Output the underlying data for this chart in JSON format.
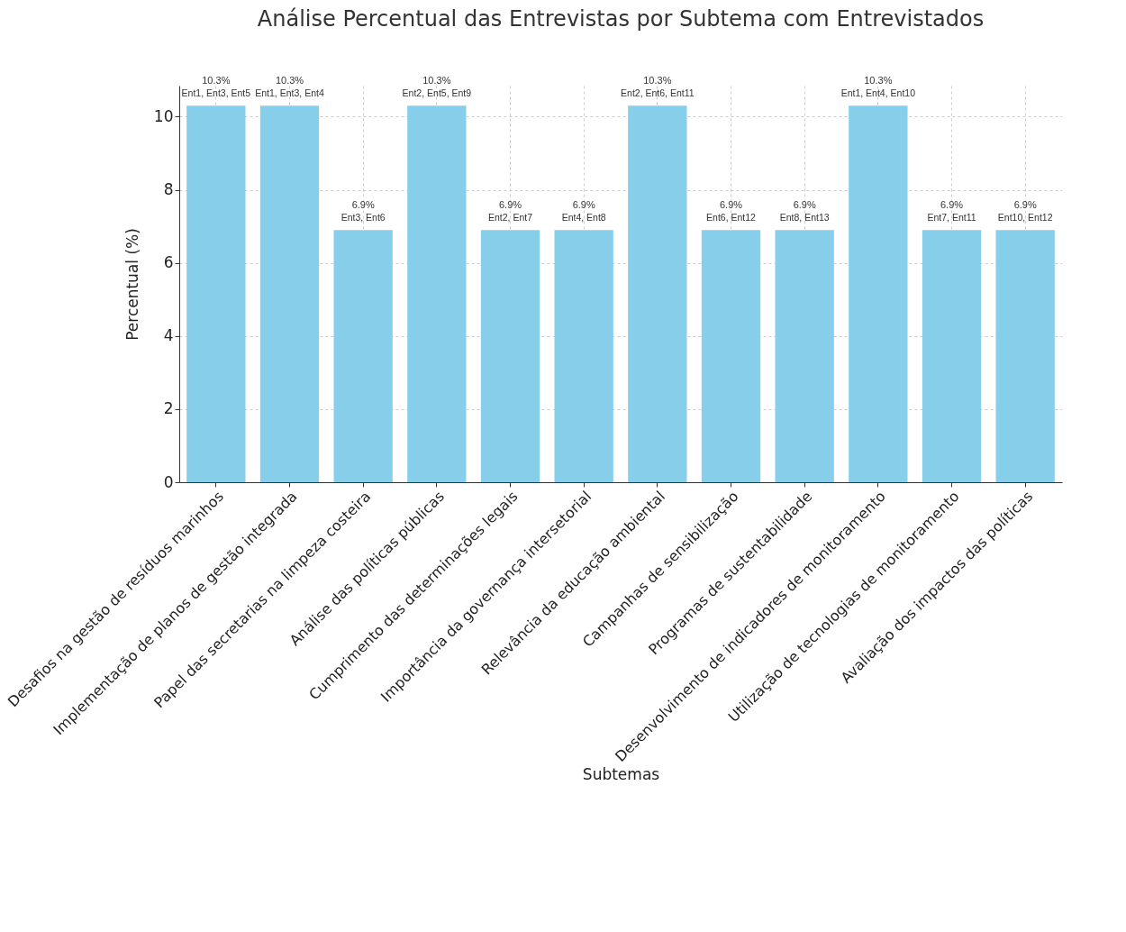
{
  "chart_data": {
    "type": "bar",
    "title": "Análise Percentual das Entrevistas por Subtema com Entrevistados",
    "xlabel": "Subtemas",
    "ylabel": "Percentual (%)",
    "categories": [
      "Desafios na gestão de resíduos marinhos",
      "Implementação de planos de gestão integrada",
      "Papel das secretarias na limpeza costeira",
      "Análise das políticas públicas",
      "Cumprimento das determinações legais",
      "Importância da governança intersetorial",
      "Relevância da educação ambiental",
      "Campanhas de sensibilização",
      "Programas de sustentabilidade",
      "Desenvolvimento de indicadores de monitoramento",
      "Utilização de tecnologias de monitoramento",
      "Avaliação dos impactos das políticas"
    ],
    "values": [
      10.3,
      10.3,
      6.9,
      10.3,
      6.9,
      6.9,
      10.3,
      6.9,
      6.9,
      10.3,
      6.9,
      6.9
    ],
    "value_labels": [
      "10.3%",
      "10.3%",
      "6.9%",
      "10.3%",
      "6.9%",
      "6.9%",
      "10.3%",
      "6.9%",
      "6.9%",
      "10.3%",
      "6.9%",
      "6.9%"
    ],
    "annotations": [
      {
        "text": "Ent1, Ent3, Ent5",
        "x": "Desafios na gestão de resíduos marinhos",
        "y": 10.3
      },
      {
        "text": "Ent1, Ent3, Ent4",
        "x": "Implementação de planos de gestão integrada",
        "y": 10.3
      },
      {
        "text": "Ent3, Ent6",
        "x": "Papel das secretarias na limpeza costeira",
        "y": 6.9
      },
      {
        "text": "Ent2, Ent5, Ent9",
        "x": "Análise das políticas públicas",
        "y": 10.3
      },
      {
        "text": "Ent2, Ent7",
        "x": "Cumprimento das determinações legais",
        "y": 6.9
      },
      {
        "text": "Ent4, Ent8",
        "x": "Importância da governança intersetorial",
        "y": 6.9
      },
      {
        "text": "Ent2, Ent6, Ent11",
        "x": "Relevância da educação ambiental",
        "y": 10.3
      },
      {
        "text": "Ent6, Ent12",
        "x": "Campanhas de sensibilização",
        "y": 6.9
      },
      {
        "text": "Ent8, Ent13",
        "x": "Programas de sustentabilidade",
        "y": 6.9
      },
      {
        "text": "Ent1, Ent4, Ent10",
        "x": "Desenvolvimento de indicadores de monitoramento",
        "y": 10.3
      },
      {
        "text": "Ent7, Ent11",
        "x": "Utilização de tecnologias de monitoramento",
        "y": 6.9
      },
      {
        "text": "Ent10, Ent12",
        "x": "Avaliação dos impactos das políticas",
        "y": 6.9
      }
    ],
    "color": "#87ceeb",
    "ylim": [
      0,
      10.85
    ],
    "yticks": [
      0,
      2,
      4,
      6,
      8,
      10
    ],
    "grid": true
  }
}
